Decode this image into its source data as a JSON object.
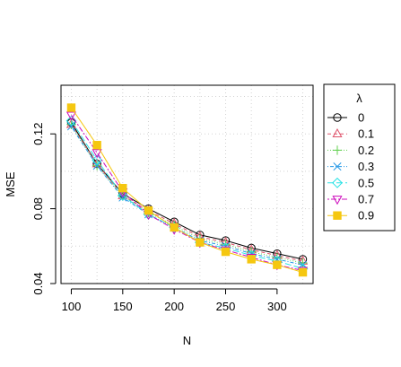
{
  "chart_data": {
    "type": "line",
    "title": "",
    "xlabel": "N",
    "ylabel": "MSE",
    "x": [
      100,
      125,
      150,
      175,
      200,
      225,
      250,
      275,
      300,
      325
    ],
    "xlim": [
      90,
      335
    ],
    "ylim": [
      0.04,
      0.146
    ],
    "xticks": [
      100,
      150,
      200,
      250,
      300
    ],
    "yticks": [
      0.04,
      0.08,
      0.12
    ],
    "xtick_labels": [
      "100",
      "150",
      "200",
      "250",
      "300"
    ],
    "ytick_labels": [
      "0.04",
      "0.08",
      "0.12"
    ],
    "grid": true,
    "legend": {
      "title": "λ",
      "placement": "right-top"
    },
    "series": [
      {
        "name": "0",
        "color": "#000000",
        "marker": "circle",
        "dash": "solid",
        "values": [
          0.126,
          0.104,
          0.088,
          0.08,
          0.073,
          0.066,
          0.063,
          0.059,
          0.056,
          0.053
        ]
      },
      {
        "name": "0.1",
        "color": "#DF536B",
        "marker": "triangle-up",
        "dash": "dashed",
        "values": [
          0.125,
          0.104,
          0.087,
          0.079,
          0.072,
          0.065,
          0.062,
          0.058,
          0.055,
          0.052
        ]
      },
      {
        "name": "0.2",
        "color": "#61D04F",
        "marker": "plus",
        "dash": "dotted",
        "values": [
          0.125,
          0.103,
          0.087,
          0.078,
          0.071,
          0.064,
          0.061,
          0.057,
          0.054,
          0.051
        ]
      },
      {
        "name": "0.3",
        "color": "#2297E6",
        "marker": "cross",
        "dash": "dotdash",
        "values": [
          0.124,
          0.103,
          0.086,
          0.077,
          0.07,
          0.063,
          0.06,
          0.056,
          0.053,
          0.05
        ]
      },
      {
        "name": "0.5",
        "color": "#28E2E5",
        "marker": "diamond",
        "dash": "longdash",
        "values": [
          0.127,
          0.106,
          0.087,
          0.077,
          0.07,
          0.062,
          0.059,
          0.055,
          0.052,
          0.048
        ]
      },
      {
        "name": "0.7",
        "color": "#CD0BBC",
        "marker": "triangle-down",
        "dash": "twodash",
        "values": [
          0.13,
          0.11,
          0.089,
          0.077,
          0.069,
          0.062,
          0.058,
          0.054,
          0.05,
          0.047
        ]
      },
      {
        "name": "0.9",
        "color": "#F5C710",
        "marker": "square",
        "dash": "solid",
        "values": [
          0.134,
          0.114,
          0.091,
          0.079,
          0.07,
          0.062,
          0.057,
          0.053,
          0.05,
          0.046
        ]
      }
    ]
  }
}
